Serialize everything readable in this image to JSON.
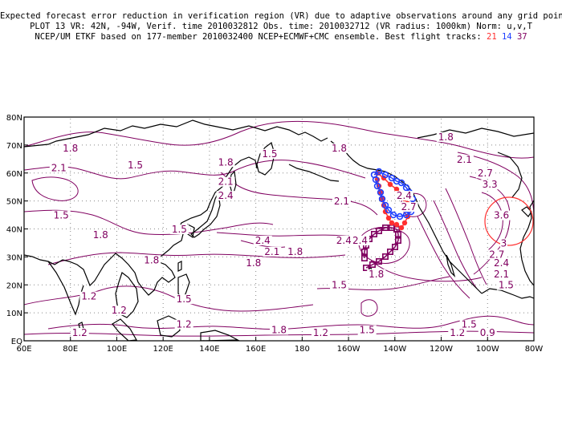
{
  "title": {
    "line1": "Expected forecast error reduction in verification region (VR) due to adaptive observations around any grid point.",
    "line2": "PLOT 13 VR: 42N, -94W, Verif. time 2010032812 Obs. time: 2010032712 (VR radius: 1000km) Norm: u,v,T",
    "line3_prefix": "NCEP/UM ETKF based on 177-member 2010032400 NCEP+ECMWF+CMC ensemble. Best flight tracks:",
    "track_ids": [
      "21",
      "14",
      "37"
    ]
  },
  "colors": {
    "contour": "#800060",
    "track_21": "#ff3030",
    "track_14": "#2040ff",
    "track_37": "#800060",
    "vr_circle": "#ff3030",
    "coast": "#000000"
  },
  "map": {
    "lon_range": [
      60,
      280
    ],
    "lat_range": [
      0,
      80
    ],
    "x_ticks": [
      "60E",
      "80E",
      "100E",
      "120E",
      "140E",
      "160E",
      "180",
      "160W",
      "140W",
      "120W",
      "100W",
      "80W"
    ],
    "y_ticks": [
      "EQ",
      "10N",
      "20N",
      "30N",
      "40N",
      "50N",
      "60N",
      "70N",
      "80N"
    ]
  },
  "verification_region": {
    "lat": 42,
    "lon": -94,
    "radius_km": 1000
  },
  "contour_labels": [
    {
      "text": "1.8",
      "lon": 80,
      "lat": 68
    },
    {
      "text": "2.1",
      "lon": 75,
      "lat": 61
    },
    {
      "text": "1.5",
      "lon": 108,
      "lat": 62
    },
    {
      "text": "1.5",
      "lon": 76,
      "lat": 44
    },
    {
      "text": "1.8",
      "lon": 93,
      "lat": 37
    },
    {
      "text": "1.8",
      "lon": 147,
      "lat": 63
    },
    {
      "text": "1.5",
      "lon": 166,
      "lat": 66
    },
    {
      "text": "1.8",
      "lon": 196,
      "lat": 68
    },
    {
      "text": "2.1",
      "lon": 147,
      "lat": 56
    },
    {
      "text": "2.4",
      "lon": 147,
      "lat": 51
    },
    {
      "text": "2.1",
      "lon": 197,
      "lat": 49
    },
    {
      "text": "1.5",
      "lon": 127,
      "lat": 39
    },
    {
      "text": "2.4",
      "lon": 163,
      "lat": 35
    },
    {
      "text": "2.1",
      "lon": 167,
      "lat": 31
    },
    {
      "text": "1.8",
      "lon": 177,
      "lat": 31
    },
    {
      "text": "1.8",
      "lon": 115,
      "lat": 28
    },
    {
      "text": "1.8",
      "lon": 159,
      "lat": 27
    },
    {
      "text": "2.4",
      "lon": 198,
      "lat": 35
    },
    {
      "text": "1.8",
      "lon": 212,
      "lat": 23
    },
    {
      "text": "1.5",
      "lon": 196,
      "lat": 19
    },
    {
      "text": "1.5",
      "lon": 129,
      "lat": 14
    },
    {
      "text": "1.2",
      "lon": 88,
      "lat": 15
    },
    {
      "text": "1.2",
      "lon": 101,
      "lat": 10
    },
    {
      "text": "1.2",
      "lon": 129,
      "lat": 5
    },
    {
      "text": "1.2",
      "lon": 84,
      "lat": 2
    },
    {
      "text": "1.8",
      "lon": 170,
      "lat": 3
    },
    {
      "text": "1.2",
      "lon": 188,
      "lat": 2
    },
    {
      "text": "1.5",
      "lon": 208,
      "lat": 3
    },
    {
      "text": "1.2",
      "lon": 247,
      "lat": 2
    },
    {
      "text": "1.5",
      "lon": 252,
      "lat": 5
    },
    {
      "text": "0.9",
      "lon": 260,
      "lat": 2
    },
    {
      "text": "1.8",
      "lon": 242,
      "lat": 72
    },
    {
      "text": "2.1",
      "lon": 250,
      "lat": 64
    },
    {
      "text": "2.7",
      "lon": 259,
      "lat": 59
    },
    {
      "text": "3.3",
      "lon": 261,
      "lat": 55
    },
    {
      "text": "3.6",
      "lon": 266,
      "lat": 44
    },
    {
      "text": "3",
      "lon": 267,
      "lat": 34
    },
    {
      "text": "2.7",
      "lon": 264,
      "lat": 30
    },
    {
      "text": "2.4",
      "lon": 266,
      "lat": 27
    },
    {
      "text": "2.1",
      "lon": 266,
      "lat": 23
    },
    {
      "text": "1.5",
      "lon": 268,
      "lat": 19
    },
    {
      "text": "2.4",
      "lon": 224,
      "lat": 51
    },
    {
      "text": "2.7",
      "lon": 226,
      "lat": 47
    },
    {
      "text": "2.4",
      "lon": 205,
      "lat": 35
    }
  ]
}
